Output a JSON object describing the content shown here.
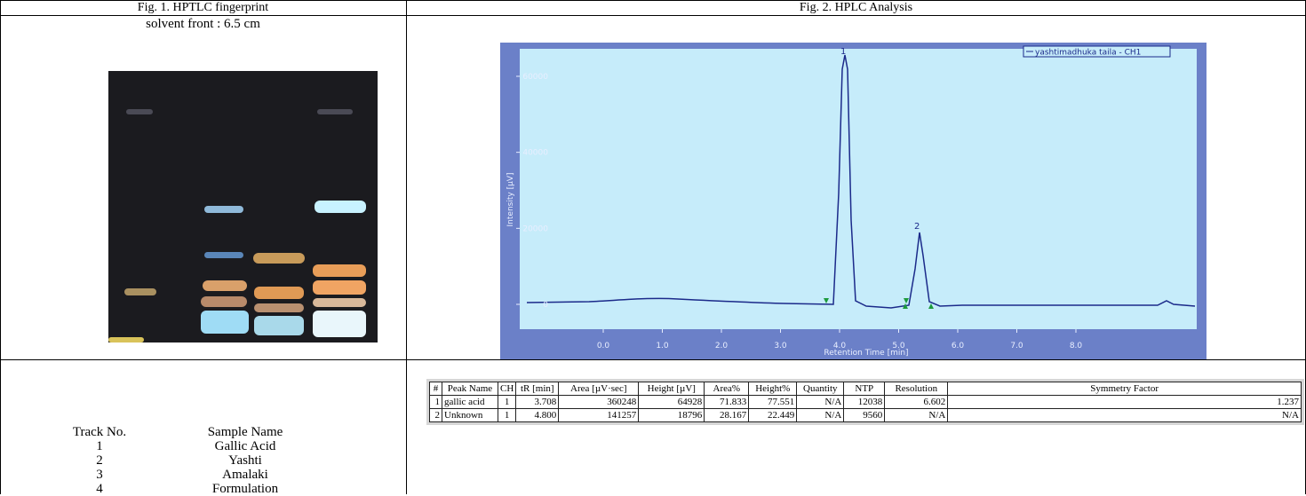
{
  "header": {
    "fig1": "Fig. 1. HPTLC fingerprint",
    "fig2": "Fig. 2. HPLC Analysis"
  },
  "hptlc": {
    "solvent_front": "solvent front : 6.5 cm"
  },
  "hplc": {
    "y_label": "Intensity [µV]",
    "x_label": "Retention Time [min]",
    "legend": "yashtimadhuka taila - CH1",
    "xlim": [
      0,
      8.5
    ],
    "ylim": [
      0,
      60000
    ],
    "xticks": [
      {
        "value": 0,
        "label": "0.0"
      },
      {
        "value": 1,
        "label": "1.0"
      },
      {
        "value": 2,
        "label": "2.0"
      },
      {
        "value": 3,
        "label": "3.0"
      },
      {
        "value": 4,
        "label": "4.0"
      },
      {
        "value": 5,
        "label": "5.0"
      },
      {
        "value": 6,
        "label": "6.0"
      },
      {
        "value": 7,
        "label": "7.0"
      },
      {
        "value": 8,
        "label": "8.0"
      }
    ],
    "yticks": [
      0,
      20000,
      40000,
      60000
    ],
    "peak_labels": [
      "1",
      "2"
    ]
  },
  "tracks": {
    "headers": [
      "Track No.",
      "Sample Name"
    ],
    "rows": [
      [
        "1",
        "Gallic Acid"
      ],
      [
        "2",
        "Yashti"
      ],
      [
        "3",
        "Amalaki"
      ],
      [
        "4",
        "Formulation"
      ]
    ]
  },
  "peak_table": {
    "headers": [
      "#",
      "Peak Name",
      "CH",
      "tR [min]",
      "Area [µV·sec]",
      "Height [µV]",
      "Area%",
      "Height%",
      "Quantity",
      "NTP",
      "Resolution",
      "Symmetry Factor"
    ],
    "rows": [
      [
        "1",
        "gallic acid",
        "1",
        "3.708",
        "360248",
        "64928",
        "71.833",
        "77.551",
        "N/A",
        "12038",
        "6.602",
        "1.237"
      ],
      [
        "2",
        "Unknown",
        "1",
        "4.800",
        "141257",
        "18796",
        "28.167",
        "22.449",
        "N/A",
        "9560",
        "N/A",
        "N/A"
      ]
    ]
  }
}
